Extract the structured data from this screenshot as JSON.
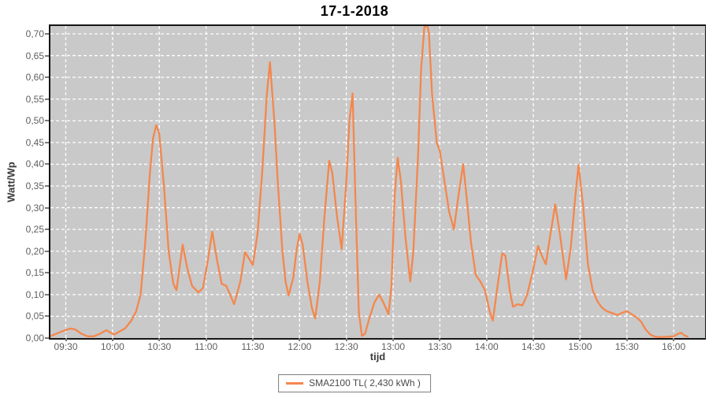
{
  "title": "17-1-2018",
  "axes": {
    "y_label": "Watt/Wp",
    "x_label": "tijd",
    "y_ticks": [
      "0,00",
      "0,05",
      "0,10",
      "0,15",
      "0,20",
      "0,25",
      "0,30",
      "0,35",
      "0,40",
      "0,45",
      "0,50",
      "0,55",
      "0,60",
      "0,65",
      "0,70"
    ],
    "x_ticks": [
      "09:30",
      "10:00",
      "10:30",
      "11:00",
      "11:30",
      "12:00",
      "12:30",
      "13:00",
      "13:30",
      "14:00",
      "14:30",
      "15:00",
      "15:30",
      "16:00"
    ]
  },
  "legend": {
    "label": "SMA2100 TL( 2,430 kWh )"
  },
  "colors": {
    "line": "#F4874D",
    "plot_bg": "#C9C9C9",
    "grid": "#FFFFFF",
    "tick_text": "#5f5f5f",
    "axis_label_text": "#3a3a3a",
    "title_text": "#000000",
    "legend_border": "#7d7d7d",
    "legend_text": "#4a4a4a"
  },
  "chart_data": {
    "type": "line",
    "title": "17-1-2018",
    "xlabel": "tijd",
    "ylabel": "Watt/Wp",
    "ylim": [
      0.0,
      0.7
    ],
    "x_range": [
      "09:20",
      "16:21"
    ],
    "y_tick_step": 0.05,
    "x_tick_step_minutes": 30,
    "grid": true,
    "grid_style": "white dashed on gray",
    "legend_position": "bottom-center",
    "note": "peak near 13:21 exceeds y-axis max and is clipped at plot top",
    "series": [
      {
        "name": "SMA2100 TL( 2,430 kWh )",
        "color": "#F4874D",
        "points": [
          [
            "09:20",
            0.004
          ],
          [
            "09:24",
            0.01
          ],
          [
            "09:28",
            0.016
          ],
          [
            "09:33",
            0.022
          ],
          [
            "09:36",
            0.02
          ],
          [
            "09:40",
            0.01
          ],
          [
            "09:44",
            0.004
          ],
          [
            "09:48",
            0.004
          ],
          [
            "09:52",
            0.01
          ],
          [
            "09:56",
            0.018
          ],
          [
            "09:59",
            0.012
          ],
          [
            "10:01",
            0.008
          ],
          [
            "10:04",
            0.014
          ],
          [
            "10:08",
            0.022
          ],
          [
            "10:12",
            0.04
          ],
          [
            "10:15",
            0.06
          ],
          [
            "10:18",
            0.1
          ],
          [
            "10:21",
            0.22
          ],
          [
            "10:24",
            0.38
          ],
          [
            "10:26",
            0.46
          ],
          [
            "10:28",
            0.49
          ],
          [
            "10:30",
            0.47
          ],
          [
            "10:33",
            0.35
          ],
          [
            "10:36",
            0.2
          ],
          [
            "10:39",
            0.125
          ],
          [
            "10:41",
            0.11
          ],
          [
            "10:45",
            0.215
          ],
          [
            "10:48",
            0.16
          ],
          [
            "10:51",
            0.12
          ],
          [
            "10:55",
            0.105
          ],
          [
            "10:58",
            0.115
          ],
          [
            "11:01",
            0.175
          ],
          [
            "11:04",
            0.245
          ],
          [
            "11:07",
            0.18
          ],
          [
            "11:10",
            0.125
          ],
          [
            "11:13",
            0.12
          ],
          [
            "11:16",
            0.095
          ],
          [
            "11:18",
            0.078
          ],
          [
            "11:22",
            0.13
          ],
          [
            "11:25",
            0.198
          ],
          [
            "11:28",
            0.18
          ],
          [
            "11:30",
            0.168
          ],
          [
            "11:33",
            0.24
          ],
          [
            "11:36",
            0.38
          ],
          [
            "11:39",
            0.56
          ],
          [
            "11:41",
            0.635
          ],
          [
            "11:43",
            0.54
          ],
          [
            "11:44",
            0.49
          ],
          [
            "11:46",
            0.36
          ],
          [
            "11:49",
            0.2
          ],
          [
            "11:51",
            0.13
          ],
          [
            "11:53",
            0.098
          ],
          [
            "11:56",
            0.14
          ],
          [
            "11:58",
            0.2
          ],
          [
            "12:00",
            0.24
          ],
          [
            "12:02",
            0.215
          ],
          [
            "12:05",
            0.13
          ],
          [
            "12:08",
            0.068
          ],
          [
            "12:10",
            0.045
          ],
          [
            "12:13",
            0.13
          ],
          [
            "12:16",
            0.28
          ],
          [
            "12:19",
            0.408
          ],
          [
            "12:21",
            0.38
          ],
          [
            "12:24",
            0.28
          ],
          [
            "12:27",
            0.205
          ],
          [
            "12:30",
            0.36
          ],
          [
            "12:32",
            0.5
          ],
          [
            "12:34",
            0.563
          ],
          [
            "12:36",
            0.3
          ],
          [
            "12:38",
            0.06
          ],
          [
            "12:40",
            0.005
          ],
          [
            "12:42",
            0.01
          ],
          [
            "12:45",
            0.048
          ],
          [
            "12:48",
            0.082
          ],
          [
            "12:51",
            0.1
          ],
          [
            "12:54",
            0.08
          ],
          [
            "12:57",
            0.055
          ],
          [
            "12:59",
            0.12
          ],
          [
            "13:01",
            0.33
          ],
          [
            "13:03",
            0.415
          ],
          [
            "13:05",
            0.36
          ],
          [
            "13:08",
            0.23
          ],
          [
            "13:11",
            0.13
          ],
          [
            "13:13",
            0.2
          ],
          [
            "13:16",
            0.42
          ],
          [
            "13:18",
            0.62
          ],
          [
            "13:20",
            0.715
          ],
          [
            "13:22",
            0.72
          ],
          [
            "13:23",
            0.7
          ],
          [
            "13:25",
            0.56
          ],
          [
            "13:28",
            0.45
          ],
          [
            "13:30",
            0.43
          ],
          [
            "13:33",
            0.36
          ],
          [
            "13:36",
            0.29
          ],
          [
            "13:39",
            0.25
          ],
          [
            "13:42",
            0.33
          ],
          [
            "13:45",
            0.4
          ],
          [
            "13:47",
            0.33
          ],
          [
            "13:50",
            0.22
          ],
          [
            "13:53",
            0.145
          ],
          [
            "13:56",
            0.13
          ],
          [
            "13:59",
            0.11
          ],
          [
            "14:02",
            0.06
          ],
          [
            "14:04",
            0.04
          ],
          [
            "14:07",
            0.12
          ],
          [
            "14:10",
            0.195
          ],
          [
            "14:12",
            0.19
          ],
          [
            "14:15",
            0.105
          ],
          [
            "14:17",
            0.072
          ],
          [
            "14:20",
            0.078
          ],
          [
            "14:23",
            0.075
          ],
          [
            "14:26",
            0.1
          ],
          [
            "14:30",
            0.16
          ],
          [
            "14:33",
            0.212
          ],
          [
            "14:36",
            0.185
          ],
          [
            "14:38",
            0.17
          ],
          [
            "14:41",
            0.24
          ],
          [
            "14:44",
            0.308
          ],
          [
            "14:47",
            0.24
          ],
          [
            "14:51",
            0.135
          ],
          [
            "14:54",
            0.21
          ],
          [
            "14:57",
            0.33
          ],
          [
            "14:59",
            0.398
          ],
          [
            "15:02",
            0.3
          ],
          [
            "15:05",
            0.17
          ],
          [
            "15:08",
            0.11
          ],
          [
            "15:11",
            0.085
          ],
          [
            "15:14",
            0.07
          ],
          [
            "15:17",
            0.062
          ],
          [
            "15:20",
            0.058
          ],
          [
            "15:24",
            0.053
          ],
          [
            "15:27",
            0.058
          ],
          [
            "15:30",
            0.062
          ],
          [
            "15:33",
            0.055
          ],
          [
            "15:36",
            0.048
          ],
          [
            "15:39",
            0.038
          ],
          [
            "15:42",
            0.02
          ],
          [
            "15:45",
            0.008
          ],
          [
            "15:48",
            0.003
          ],
          [
            "15:52",
            0.002
          ],
          [
            "15:56",
            0.003
          ],
          [
            "16:00",
            0.004
          ],
          [
            "16:03",
            0.01
          ],
          [
            "16:05",
            0.012
          ],
          [
            "16:07",
            0.006
          ],
          [
            "16:09",
            0.003
          ]
        ]
      }
    ]
  }
}
